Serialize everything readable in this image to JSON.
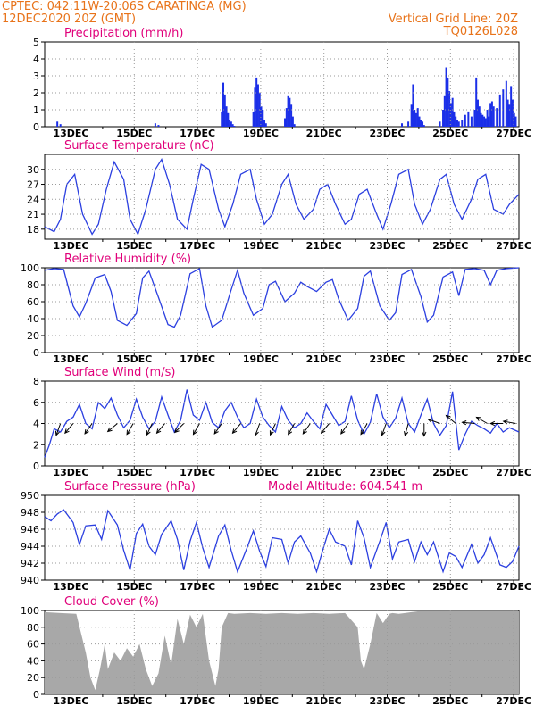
{
  "header": {
    "line1_left": "CPTEC:   042:11W-20:06S   CARATINGA (MG)",
    "line2_left": "12DEC2020 20Z (GMT)",
    "line1_right": "Vertical Grid Line: 20Z",
    "line2_right": "TQ0126L028",
    "color": "#e8731a"
  },
  "colors": {
    "title": "#e0007a",
    "line": "#2b3fe0",
    "bar": "#1b2fe8",
    "cloud": "#a8a8a8",
    "grid": "#9a9a9a",
    "arrow": "#000000"
  },
  "x_tick_labels": [
    "13DEC",
    "15DEC",
    "17DEC",
    "19DEC",
    "21DEC",
    "23DEC",
    "25DEC",
    "27DEC"
  ],
  "chart_data": [
    {
      "id": "precipitation",
      "type": "bar",
      "title": "Precipitation (mm/h)",
      "xlim": [
        "12DEC2020 20Z",
        "27DEC2020 20Z"
      ],
      "ylim": [
        0,
        5
      ],
      "yticks": [
        "0",
        "1",
        "2",
        "3",
        "4",
        "5"
      ],
      "ytick_values": [
        0,
        1,
        2,
        3,
        4,
        5
      ],
      "x_days": [
        0.4,
        0.5,
        3.5,
        3.6,
        5.6,
        5.65,
        5.7,
        5.75,
        5.8,
        5.85,
        5.9,
        5.95,
        6.0,
        6.6,
        6.65,
        6.7,
        6.75,
        6.8,
        6.85,
        6.9,
        6.95,
        7.0,
        7.6,
        7.65,
        7.7,
        7.75,
        7.8,
        7.85,
        7.9,
        11.3,
        11.5,
        11.6,
        11.65,
        11.7,
        11.75,
        11.8,
        11.85,
        11.9,
        11.95,
        12.0,
        12.5,
        12.6,
        12.65,
        12.7,
        12.75,
        12.8,
        12.85,
        12.9,
        12.95,
        13.0,
        13.05,
        13.1,
        13.2,
        13.3,
        13.4,
        13.5,
        13.6,
        13.65,
        13.7,
        13.75,
        13.8,
        13.85,
        13.9,
        13.95,
        14.0,
        14.05,
        14.1,
        14.15,
        14.2,
        14.3,
        14.4,
        14.5,
        14.6,
        14.65,
        14.7,
        14.75,
        14.8,
        14.85,
        14.9
      ],
      "values": [
        0.3,
        0.15,
        0.2,
        0.1,
        0.9,
        2.6,
        1.9,
        1.2,
        0.8,
        0.4,
        0.3,
        0.15,
        0.05,
        0.9,
        2.3,
        2.9,
        2.5,
        2.0,
        1.2,
        1.0,
        0.4,
        0.2,
        0.5,
        1.1,
        1.8,
        1.7,
        1.3,
        0.6,
        0.15,
        0.2,
        0.3,
        1.3,
        2.5,
        1.0,
        0.8,
        1.1,
        0.6,
        0.4,
        0.3,
        0.1,
        0.3,
        1.0,
        1.8,
        3.5,
        2.9,
        2.1,
        1.4,
        1.7,
        0.9,
        0.6,
        0.4,
        0.3,
        0.4,
        0.7,
        0.9,
        0.6,
        1.0,
        2.9,
        1.6,
        1.2,
        0.8,
        0.7,
        0.6,
        0.5,
        1.0,
        0.6,
        1.4,
        1.5,
        1.2,
        1.1,
        1.9,
        2.2,
        2.7,
        1.6,
        1.3,
        2.4,
        1.6,
        0.8,
        0.6
      ]
    },
    {
      "id": "surface-temperature",
      "type": "line",
      "title": "Surface Temperature (nC)",
      "xlim": [
        "12DEC2020 20Z",
        "27DEC2020 20Z"
      ],
      "ylim": [
        16,
        33
      ],
      "yticks": [
        "18",
        "21",
        "24",
        "27",
        "30"
      ],
      "ytick_values": [
        18,
        21,
        24,
        27,
        30
      ],
      "series": [
        {
          "x_days": [
            0,
            0.3,
            0.5,
            0.7,
            0.95,
            1.2,
            1.5,
            1.7,
            1.95,
            2.2,
            2.5,
            2.7,
            2.95,
            3.2,
            3.5,
            3.7,
            3.95,
            4.2,
            4.5,
            4.7,
            4.95,
            5.2,
            5.5,
            5.7,
            5.95,
            6.2,
            6.5,
            6.7,
            6.95,
            7.2,
            7.5,
            7.7,
            7.95,
            8.2,
            8.5,
            8.7,
            8.95,
            9.2,
            9.5,
            9.7,
            9.95,
            10.2,
            10.5,
            10.7,
            10.95,
            11.2,
            11.5,
            11.7,
            11.95,
            12.2,
            12.5,
            12.7,
            12.95,
            13.2,
            13.5,
            13.7,
            13.95,
            14.2,
            14.5,
            14.7,
            15
          ],
          "values": [
            18.5,
            17.5,
            20,
            27,
            29,
            21,
            17,
            19,
            26,
            31.5,
            28,
            20,
            17,
            22,
            30,
            32,
            27,
            20,
            18,
            24,
            31,
            30,
            22,
            18.5,
            23,
            29,
            30,
            24,
            19,
            21,
            27,
            29,
            23,
            20,
            22,
            26,
            27,
            23,
            19,
            20,
            25,
            26,
            21,
            18,
            23,
            29,
            30,
            23,
            19,
            22,
            28,
            29,
            23,
            20,
            24,
            28,
            29,
            22,
            21,
            23,
            25
          ]
        }
      ]
    },
    {
      "id": "relative-humidity",
      "type": "line",
      "title": "Relative Humidity (%)",
      "xlim": [
        "12DEC2020 20Z",
        "27DEC2020 20Z"
      ],
      "ylim": [
        0,
        100
      ],
      "yticks": [
        "0",
        "20",
        "40",
        "60",
        "80",
        "100"
      ],
      "ytick_values": [
        0,
        20,
        40,
        60,
        80,
        100
      ],
      "series": [
        {
          "x_days": [
            0,
            0.3,
            0.6,
            0.9,
            1.1,
            1.3,
            1.6,
            1.9,
            2.1,
            2.3,
            2.6,
            2.9,
            3.1,
            3.3,
            3.6,
            3.9,
            4.1,
            4.3,
            4.6,
            4.9,
            5.1,
            5.3,
            5.6,
            5.9,
            6.1,
            6.3,
            6.6,
            6.9,
            7.1,
            7.3,
            7.6,
            7.9,
            8.1,
            8.3,
            8.6,
            8.9,
            9.1,
            9.3,
            9.6,
            9.9,
            10.1,
            10.3,
            10.6,
            10.9,
            11.1,
            11.3,
            11.6,
            11.9,
            12.1,
            12.3,
            12.6,
            12.9,
            13.1,
            13.3,
            13.6,
            13.9,
            14.1,
            14.3,
            14.6,
            15
          ],
          "values": [
            97,
            99,
            98,
            55,
            42,
            58,
            88,
            92,
            72,
            38,
            32,
            46,
            88,
            96,
            65,
            33,
            30,
            44,
            93,
            99,
            55,
            30,
            38,
            74,
            97,
            70,
            44,
            52,
            80,
            84,
            60,
            70,
            83,
            78,
            72,
            83,
            86,
            63,
            38,
            52,
            90,
            96,
            55,
            38,
            47,
            92,
            98,
            66,
            36,
            44,
            89,
            95,
            67,
            98,
            99,
            97,
            80,
            97,
            99,
            100
          ]
        }
      ]
    },
    {
      "id": "surface-wind",
      "type": "line",
      "title": "Surface Wind (m/s)",
      "xlim": [
        "12DEC2020 20Z",
        "27DEC2020 20Z"
      ],
      "ylim": [
        0,
        8
      ],
      "yticks": [
        "0",
        "2",
        "4",
        "6",
        "8"
      ],
      "ytick_values": [
        0,
        2,
        4,
        6,
        8
      ],
      "series": [
        {
          "x_days": [
            0,
            0.15,
            0.3,
            0.5,
            0.7,
            0.9,
            1.1,
            1.3,
            1.5,
            1.7,
            1.9,
            2.1,
            2.3,
            2.5,
            2.7,
            2.9,
            3.1,
            3.3,
            3.5,
            3.7,
            3.9,
            4.1,
            4.3,
            4.5,
            4.7,
            4.9,
            5.1,
            5.3,
            5.5,
            5.7,
            5.9,
            6.1,
            6.3,
            6.5,
            6.7,
            6.9,
            7.1,
            7.3,
            7.5,
            7.7,
            7.9,
            8.1,
            8.3,
            8.5,
            8.7,
            8.9,
            9.1,
            9.3,
            9.5,
            9.7,
            9.9,
            10.1,
            10.3,
            10.5,
            10.7,
            10.9,
            11.1,
            11.3,
            11.5,
            11.7,
            11.9,
            12.1,
            12.3,
            12.5,
            12.7,
            12.9,
            13.1,
            13.3,
            13.5,
            13.7,
            13.9,
            14.1,
            14.3,
            14.5,
            14.7,
            15
          ],
          "values": [
            0.8,
            2,
            3.5,
            3.2,
            4.2,
            4.6,
            5.8,
            4.0,
            3.5,
            6.0,
            5.4,
            6.4,
            4.8,
            3.6,
            4.3,
            6.3,
            4.6,
            3.5,
            4.2,
            6.5,
            4.8,
            3.2,
            4.3,
            7.2,
            4.8,
            4.3,
            6.0,
            4.1,
            3.6,
            5.2,
            6.0,
            4.6,
            3.6,
            4.0,
            6.3,
            4.6,
            3.8,
            3.2,
            5.6,
            4.3,
            3.6,
            4.0,
            5.0,
            4.2,
            3.5,
            5.8,
            4.8,
            3.8,
            4.2,
            6.6,
            4.3,
            3.0,
            4.1,
            6.8,
            4.6,
            3.6,
            4.5,
            6.4,
            4.0,
            3.2,
            4.8,
            6.3,
            4.0,
            2.9,
            3.8,
            7.0,
            1.5,
            3.0,
            4.2,
            3.8,
            3.5,
            3.1,
            4.0,
            3.2,
            3.6,
            3.2
          ]
        }
      ],
      "arrows_x_days": [
        0.5,
        0.9,
        1.5,
        2.3,
        2.8,
        3.4,
        3.8,
        4.4,
        4.9,
        5.6,
        6.2,
        6.8,
        7.3,
        7.9,
        8.4,
        9.0,
        9.6,
        10.2,
        10.8,
        11.5,
        12.0,
        12.5,
        13.0,
        13.6,
        14.0,
        14.5,
        14.9
      ],
      "arrows_angle_deg": [
        250,
        230,
        235,
        220,
        240,
        245,
        230,
        225,
        240,
        235,
        230,
        250,
        245,
        240,
        235,
        230,
        235,
        240,
        250,
        255,
        270,
        160,
        140,
        175,
        150,
        180,
        170
      ]
    },
    {
      "id": "surface-pressure",
      "type": "line",
      "title": "Surface Pressure (hPa)",
      "subtitle": "Model Altitude: 604.541 m",
      "xlim": [
        "12DEC2020 20Z",
        "27DEC2020 20Z"
      ],
      "ylim": [
        940,
        950
      ],
      "yticks": [
        "940",
        "942",
        "944",
        "946",
        "948",
        "950"
      ],
      "ytick_values": [
        940,
        942,
        944,
        946,
        948,
        950
      ],
      "series": [
        {
          "x_days": [
            0,
            0.2,
            0.4,
            0.6,
            0.9,
            1.1,
            1.3,
            1.6,
            1.8,
            2.0,
            2.3,
            2.5,
            2.7,
            2.9,
            3.1,
            3.3,
            3.5,
            3.7,
            4.0,
            4.2,
            4.4,
            4.6,
            4.8,
            5.0,
            5.2,
            5.5,
            5.7,
            5.9,
            6.1,
            6.4,
            6.6,
            6.8,
            7.0,
            7.2,
            7.5,
            7.7,
            7.9,
            8.1,
            8.4,
            8.6,
            8.8,
            9.0,
            9.2,
            9.5,
            9.7,
            9.9,
            10.1,
            10.3,
            10.6,
            10.8,
            11.0,
            11.2,
            11.5,
            11.7,
            11.9,
            12.1,
            12.3,
            12.6,
            12.8,
            13.0,
            13.2,
            13.5,
            13.7,
            13.9,
            14.1,
            14.4,
            14.6,
            14.8,
            15
          ],
          "values": [
            947.5,
            947.0,
            947.8,
            948.3,
            946.8,
            944.2,
            946.4,
            946.5,
            944.8,
            948.2,
            946.5,
            943.5,
            941.2,
            945.5,
            946.6,
            944.0,
            943.0,
            945.4,
            947.0,
            944.8,
            941.2,
            944.6,
            946.8,
            943.8,
            941.5,
            945.2,
            946.5,
            943.5,
            941.0,
            943.8,
            945.8,
            943.4,
            941.6,
            945.0,
            944.8,
            942.0,
            944.5,
            945.2,
            943.2,
            941.0,
            943.6,
            946.0,
            944.5,
            944.0,
            941.8,
            947.0,
            945.0,
            941.5,
            944.6,
            946.8,
            942.5,
            944.5,
            944.8,
            942.2,
            944.5,
            943.0,
            944.5,
            941.0,
            943.2,
            942.8,
            941.5,
            944.2,
            942.0,
            943.0,
            945.0,
            941.8,
            941.5,
            942.2,
            944.0
          ]
        }
      ]
    },
    {
      "id": "cloud-cover",
      "type": "area",
      "title": "Cloud Cover (%)",
      "xlim": [
        "12DEC2020 20Z",
        "27DEC2020 20Z"
      ],
      "ylim": [
        0,
        100
      ],
      "yticks": [
        "0",
        "20",
        "40",
        "60",
        "80",
        "100"
      ],
      "ytick_values": [
        0,
        20,
        40,
        60,
        80,
        100
      ],
      "series": [
        {
          "x_days": [
            0,
            0.5,
            1.0,
            1.3,
            1.45,
            1.6,
            1.75,
            1.9,
            2.0,
            2.2,
            2.4,
            2.6,
            2.8,
            3.0,
            3.2,
            3.4,
            3.6,
            3.8,
            4.0,
            4.2,
            4.4,
            4.6,
            4.8,
            5.0,
            5.2,
            5.4,
            5.5,
            5.6,
            5.8,
            6.0,
            6.5,
            7.0,
            7.5,
            8.0,
            8.5,
            9.0,
            9.5,
            9.9,
            10.0,
            10.1,
            10.3,
            10.5,
            10.7,
            10.9,
            11.0,
            11.2,
            11.4,
            11.6,
            11.8,
            12.0,
            12.5,
            13.0,
            13.5,
            14.0,
            14.5,
            15
          ],
          "values": [
            98,
            97,
            96,
            50,
            20,
            5,
            30,
            60,
            30,
            50,
            40,
            55,
            45,
            60,
            30,
            10,
            25,
            70,
            35,
            90,
            60,
            95,
            80,
            96,
            40,
            10,
            30,
            80,
            97,
            96,
            97,
            96,
            97,
            96,
            97,
            96,
            97,
            80,
            40,
            30,
            60,
            97,
            85,
            96,
            97,
            96,
            97,
            98,
            99,
            99,
            99,
            99,
            99,
            99,
            99,
            99
          ]
        }
      ]
    }
  ]
}
